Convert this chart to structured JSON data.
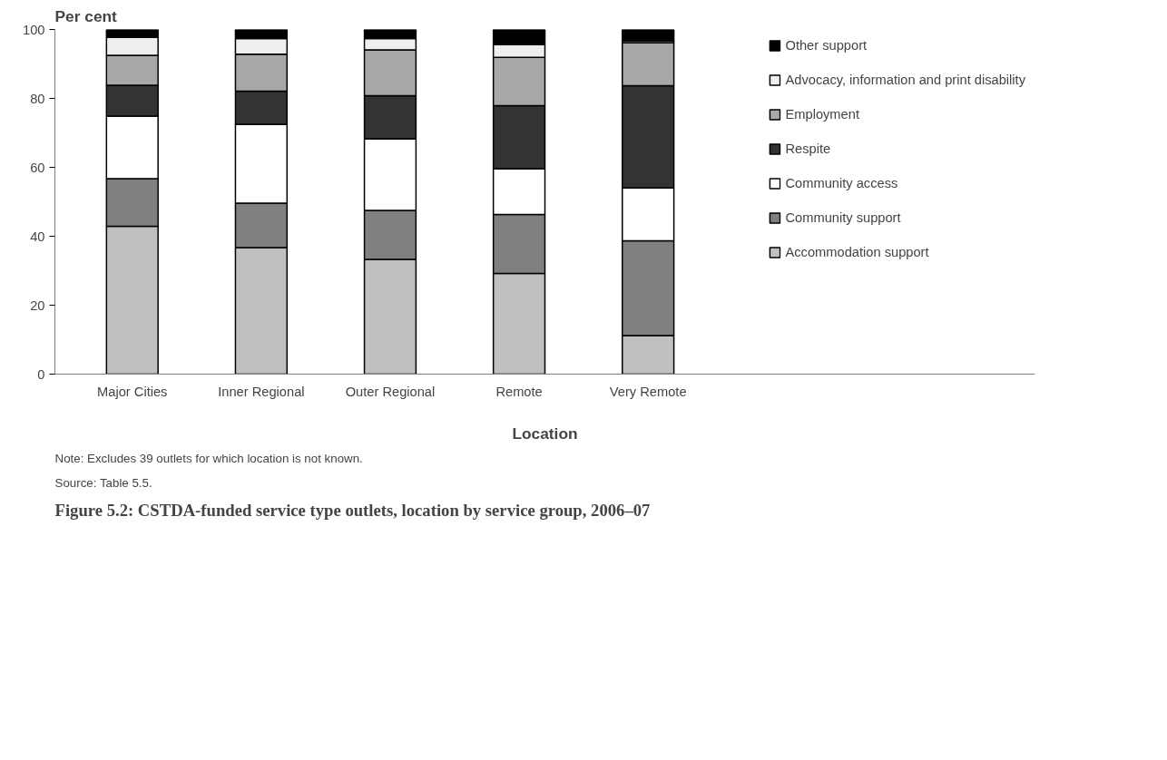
{
  "chart_data": {
    "type": "bar",
    "stacked": true,
    "title": "Figure 5.2: CSTDA-funded service type outlets, location by service group, 2006–07",
    "xlabel": "Location",
    "ylabel": "Per cent",
    "categories": [
      "Major Cities",
      "Inner Regional",
      "Outer Regional",
      "Remote",
      "Very Remote"
    ],
    "series": [
      {
        "name": "Accommodation support",
        "color": "#c0c0c0",
        "values": [
          42.9,
          36.7,
          33.3,
          29.2,
          11.2
        ]
      },
      {
        "name": "Community support",
        "color": "#808080",
        "values": [
          13.8,
          12.9,
          14.2,
          17.1,
          27.5
        ]
      },
      {
        "name": "Community access",
        "color": "#ffffff",
        "values": [
          18.2,
          22.9,
          20.8,
          13.3,
          15.3
        ]
      },
      {
        "name": "Respite",
        "color": "#333333",
        "values": [
          8.9,
          9.6,
          12.5,
          18.3,
          29.7
        ]
      },
      {
        "name": "Employment",
        "color": "#a8a8a8",
        "values": [
          8.7,
          10.7,
          13.3,
          14.0,
          12.5
        ]
      },
      {
        "name": "Advocacy, information and print disability",
        "color": "#eeeeee",
        "values": [
          5.2,
          4.6,
          3.3,
          3.7,
          0.5
        ]
      },
      {
        "name": "Other support",
        "color": "#000000",
        "values": [
          2.3,
          2.6,
          2.6,
          4.4,
          3.3
        ]
      }
    ],
    "ylim": [
      0,
      100
    ],
    "yticks": [
      0,
      20,
      40,
      60,
      80,
      100
    ],
    "grid": false,
    "legend": "top right",
    "annotations": [
      "Note: Excludes 39 outlets for which location is not known.",
      "Source: Table 5.5."
    ]
  }
}
